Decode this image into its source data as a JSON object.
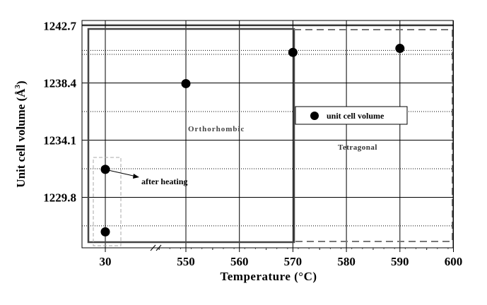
{
  "chart_data": {
    "type": "scatter",
    "title": "",
    "xlabel": "Temperature (°C)",
    "ylabel": "Unit cell volume (Å",
    "ylabel_sup": "3",
    "ylabel_close": ")",
    "xlim": [
      540,
      600
    ],
    "x_break": "axis break between 30 and 550",
    "ylim": [
      1226.0,
      1243.1
    ],
    "x_ticks": [
      30,
      550,
      560,
      570,
      580,
      590,
      600
    ],
    "y_ticks": [
      1229.8,
      1234.1,
      1238.4,
      1242.7
    ],
    "y_tick_labels": [
      "1229.8",
      "1234.1",
      "1238.4",
      "1242.7"
    ],
    "grid": true,
    "series": [
      {
        "name": "unit cell volume",
        "x": [
          30,
          30,
          550,
          570,
          590
        ],
        "y": [
          1227.2,
          1231.9,
          1238.35,
          1240.7,
          1241.0
        ]
      }
    ],
    "legend": {
      "label": "unit cell volume",
      "placement": "center-right"
    },
    "annotations": {
      "orthorhombic": "Orthorhombic",
      "tetragonal": "Tetragonal",
      "after_heating": "after heating"
    }
  }
}
